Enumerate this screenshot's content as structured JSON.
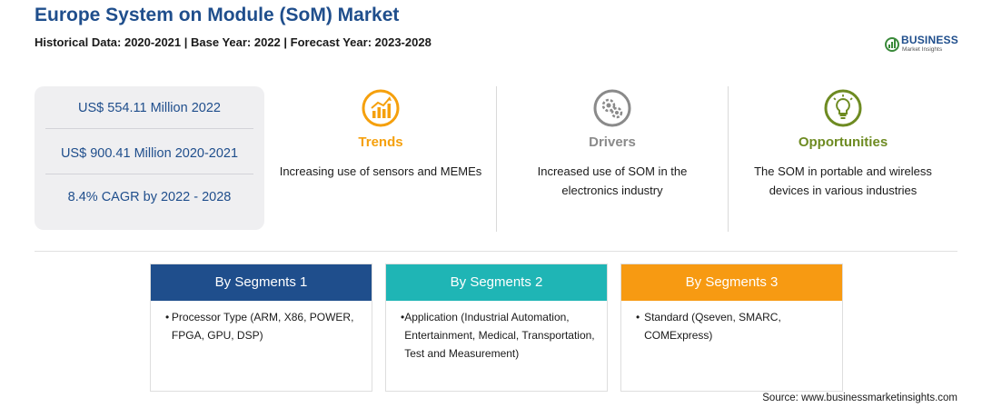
{
  "header": {
    "title": "Europe System on Module (SoM) Market",
    "subtitle": "Historical Data: 2020-2021 | Base Year: 2022 | Forecast Year: 2023-2028"
  },
  "logo": {
    "top": "BUSINESS",
    "bottom": "Market Insights"
  },
  "stats": [
    "US$ 554.11 Million 2022",
    "US$ 900.41 Million 2020-2021",
    "8.4% CAGR by 2022 - 2028"
  ],
  "insights": {
    "trends": {
      "title": "Trends",
      "text": "Increasing use of sensors and MEMEs",
      "icon": "trend-chart-icon",
      "color": "#f5a00d"
    },
    "drivers": {
      "title": "Drivers",
      "text": "Increased use of SOM in the electronics industry",
      "icon": "gears-icon",
      "color": "#8a8a8a"
    },
    "opportunities": {
      "title": "Opportunities",
      "text": "The SOM in portable and wireless devices in various industries",
      "icon": "lightbulb-icon",
      "color": "#6e8b22"
    }
  },
  "segments": [
    {
      "title": "By Segments 1",
      "color": "#1f4e8c",
      "bullet": "•",
      "text": "Processor Type (ARM, X86, POWER, FPGA, GPU, DSP)"
    },
    {
      "title": "By Segments 2",
      "color": "#1fb5b5",
      "bullet": "•",
      "text": "Application (Industrial Automation, Entertainment, Medical, Transportation, Test and Measurement)"
    },
    {
      "title": "By Segments 3",
      "color": "#f79a12",
      "bullet": "•",
      "text": "Standard (Qseven, SMARC, COMExpress)"
    }
  ],
  "source": "Source: www.businessmarketinsights.com"
}
